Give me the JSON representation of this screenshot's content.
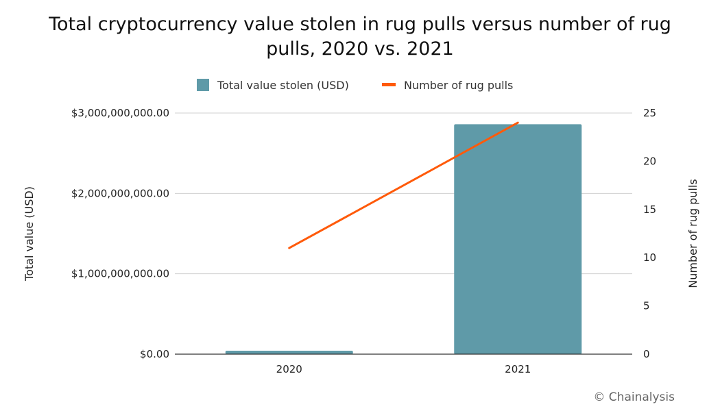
{
  "chart_data": {
    "type": "bar+line",
    "title": "Total cryptocurrency value stolen in rug pulls versus number of rug pulls, 2020 vs. 2021",
    "title_lines": [
      "Total cryptocurrency value stolen in rug pulls versus number of rug",
      "pulls, 2020 vs. 2021"
    ],
    "categories": [
      "2020",
      "2021"
    ],
    "series": [
      {
        "name": "Total value stolen (USD)",
        "type": "bar",
        "axis": "left",
        "color": "#5f9aa8",
        "values": [
          43000000,
          2860000000
        ]
      },
      {
        "name": "Number of rug pulls",
        "type": "line",
        "axis": "right",
        "color": "#ff5a0a",
        "values": [
          11,
          24
        ]
      }
    ],
    "ylabel_left": "Total value (USD)",
    "ylabel_right": "Number of rug pulls",
    "ylim_left": [
      0,
      3000000000
    ],
    "ylim_right": [
      0,
      25
    ],
    "yticks_left": [
      0,
      1000000000,
      2000000000,
      3000000000
    ],
    "yticks_left_labels": [
      "$0.00",
      "$1,000,000,000.00",
      "$2,000,000,000.00",
      "$3,000,000,000.00"
    ],
    "yticks_right": [
      0,
      5,
      10,
      15,
      20,
      25
    ],
    "yticks_right_labels": [
      "0",
      "5",
      "10",
      "15",
      "20",
      "25"
    ],
    "grid": true,
    "legend_position": "top"
  },
  "credit": "© Chainalysis"
}
